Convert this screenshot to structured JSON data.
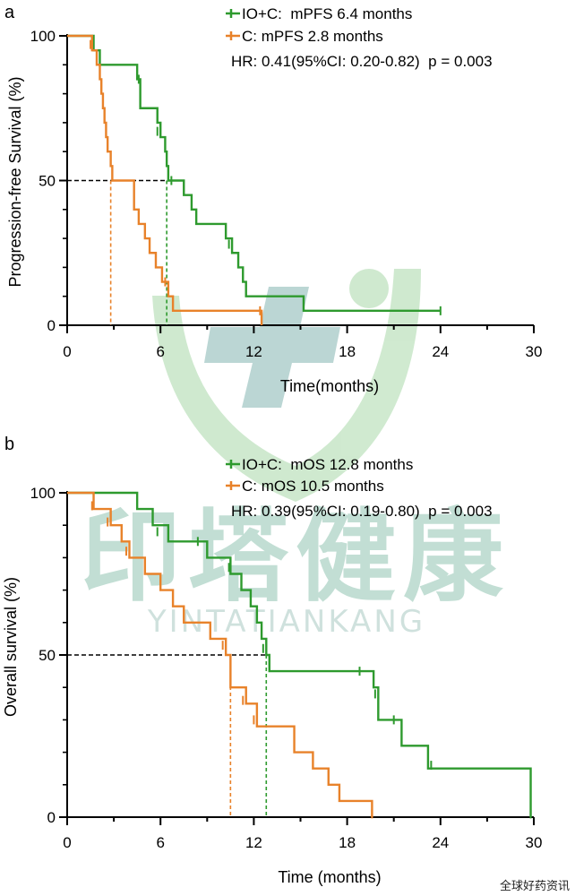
{
  "colors": {
    "io_c": "#2e9a2e",
    "c": "#e8822a",
    "axis": "#000000",
    "median_line": "#000000",
    "watermark_green": "#7dbf7d",
    "watermark_teal": "#5f9e9a"
  },
  "watermark": {
    "logo_icon": "cross-leaf-logo-icon",
    "cn_text": "印塔健康",
    "en_text": "YINTATIANKANG"
  },
  "footer": {
    "source": "全球好药资讯"
  },
  "chart_data": [
    {
      "type": "line",
      "subtype": "kaplan-meier",
      "panel_label": "a",
      "xlabel": "Time(months)",
      "ylabel": "Progression-free Survival (%)",
      "xlim": [
        0,
        30
      ],
      "ylim": [
        0,
        100
      ],
      "x_ticks": [
        0,
        6,
        12,
        18,
        24,
        30
      ],
      "y_ticks": [
        0,
        50,
        100
      ],
      "x_tick_labels": [
        "0",
        "6",
        "12",
        "18",
        "24",
        "30"
      ],
      "y_tick_labels": [
        "0",
        "50",
        "100"
      ],
      "legend": {
        "placement": "top-right",
        "entries": [
          "IO+C:  mPFS 6.4 months",
          "C: mPFS 2.8 months"
        ],
        "stat_line": "HR: 0.41(95%CI: 0.20-0.82)  p = 0.003"
      },
      "series": [
        {
          "name": "IO+C",
          "color": "#2e9a2e",
          "steps": [
            [
              0,
              100
            ],
            [
              1.7,
              95
            ],
            [
              2.1,
              90
            ],
            [
              4.5,
              85
            ],
            [
              4.7,
              75
            ],
            [
              5.8,
              70
            ],
            [
              6.0,
              65
            ],
            [
              6.3,
              60
            ],
            [
              6.4,
              55
            ],
            [
              6.5,
              50
            ],
            [
              7.5,
              45
            ],
            [
              8.0,
              40
            ],
            [
              8.3,
              35
            ],
            [
              10.2,
              30
            ],
            [
              10.6,
              25
            ],
            [
              11.0,
              20
            ],
            [
              11.3,
              15
            ],
            [
              11.5,
              10
            ],
            [
              15.2,
              5
            ],
            [
              24,
              5
            ]
          ],
          "censored": [
            [
              1.6,
              98
            ],
            [
              4.6,
              85
            ],
            [
              5.8,
              67
            ],
            [
              6.7,
              50
            ],
            [
              10.4,
              28
            ],
            [
              24,
              5
            ]
          ]
        },
        {
          "name": "C",
          "color": "#e8822a",
          "steps": [
            [
              0,
              100
            ],
            [
              1.6,
              95
            ],
            [
              1.9,
              90
            ],
            [
              2.1,
              85
            ],
            [
              2.2,
              80
            ],
            [
              2.3,
              75
            ],
            [
              2.4,
              70
            ],
            [
              2.5,
              65
            ],
            [
              2.6,
              60
            ],
            [
              2.8,
              55
            ],
            [
              2.9,
              50
            ],
            [
              4.3,
              40
            ],
            [
              4.6,
              35
            ],
            [
              5.0,
              30
            ],
            [
              5.3,
              25
            ],
            [
              5.7,
              20
            ],
            [
              6.1,
              15
            ],
            [
              6.5,
              10
            ],
            [
              6.8,
              5
            ],
            [
              12.5,
              0
            ]
          ],
          "censored": [
            [
              1.5,
              97
            ],
            [
              6.3,
              15
            ],
            [
              12.4,
              5
            ]
          ]
        }
      ],
      "medians": [
        {
          "series": "C",
          "x": 2.8,
          "y": 50
        },
        {
          "series": "IO+C",
          "x": 6.4,
          "y": 50
        }
      ]
    },
    {
      "type": "line",
      "subtype": "kaplan-meier",
      "panel_label": "b",
      "xlabel": "Time (months)",
      "ylabel": "Overall survival (%)",
      "xlim": [
        0,
        30
      ],
      "ylim": [
        0,
        100
      ],
      "x_ticks": [
        0,
        6,
        12,
        18,
        24,
        30
      ],
      "y_ticks": [
        0,
        50,
        100
      ],
      "x_tick_labels": [
        "0",
        "6",
        "12",
        "18",
        "24",
        "30"
      ],
      "y_tick_labels": [
        "0",
        "50",
        "100"
      ],
      "legend": {
        "placement": "top-right",
        "entries": [
          "IO+C:  mOS 12.8 months",
          "C: mOS 10.5 months"
        ],
        "stat_line": "HR: 0.39(95%CI: 0.19-0.80)  p = 0.003"
      },
      "series": [
        {
          "name": "IO+C",
          "color": "#2e9a2e",
          "steps": [
            [
              0,
              100
            ],
            [
              4.5,
              95
            ],
            [
              5.5,
              90
            ],
            [
              6.5,
              85
            ],
            [
              9.0,
              80
            ],
            [
              10.5,
              75
            ],
            [
              11.2,
              70
            ],
            [
              11.8,
              65
            ],
            [
              12.2,
              60
            ],
            [
              12.5,
              55
            ],
            [
              12.8,
              50
            ],
            [
              13.0,
              45
            ],
            [
              19.7,
              40
            ],
            [
              20.0,
              30
            ],
            [
              21.5,
              22
            ],
            [
              23.2,
              15
            ],
            [
              29.8,
              0
            ]
          ],
          "censored": [
            [
              5.8,
              88
            ],
            [
              8.4,
              85
            ],
            [
              10.4,
              77
            ],
            [
              12.6,
              52
            ],
            [
              18.8,
              45
            ],
            [
              19.8,
              38
            ],
            [
              21.0,
              30
            ],
            [
              23.4,
              16
            ],
            [
              29.8,
              1
            ]
          ]
        },
        {
          "name": "C",
          "color": "#e8822a",
          "steps": [
            [
              0,
              100
            ],
            [
              1.7,
              95
            ],
            [
              2.8,
              90
            ],
            [
              3.5,
              85
            ],
            [
              4.0,
              80
            ],
            [
              5.0,
              75
            ],
            [
              6.0,
              70
            ],
            [
              6.8,
              65
            ],
            [
              7.5,
              60
            ],
            [
              9.2,
              55
            ],
            [
              10.2,
              50
            ],
            [
              10.5,
              40
            ],
            [
              11.5,
              35
            ],
            [
              12.2,
              28
            ],
            [
              14.6,
              20
            ],
            [
              15.8,
              15
            ],
            [
              16.8,
              10
            ],
            [
              17.5,
              5
            ],
            [
              19.6,
              0
            ]
          ],
          "censored": [
            [
              1.6,
              96
            ],
            [
              2.6,
              91
            ],
            [
              3.8,
              82
            ],
            [
              10.0,
              53
            ],
            [
              11.3,
              36
            ],
            [
              12.0,
              30
            ],
            [
              19.6,
              1
            ]
          ]
        }
      ],
      "medians": [
        {
          "series": "C",
          "x": 10.5,
          "y": 50
        },
        {
          "series": "IO+C",
          "x": 12.8,
          "y": 50
        }
      ]
    }
  ]
}
